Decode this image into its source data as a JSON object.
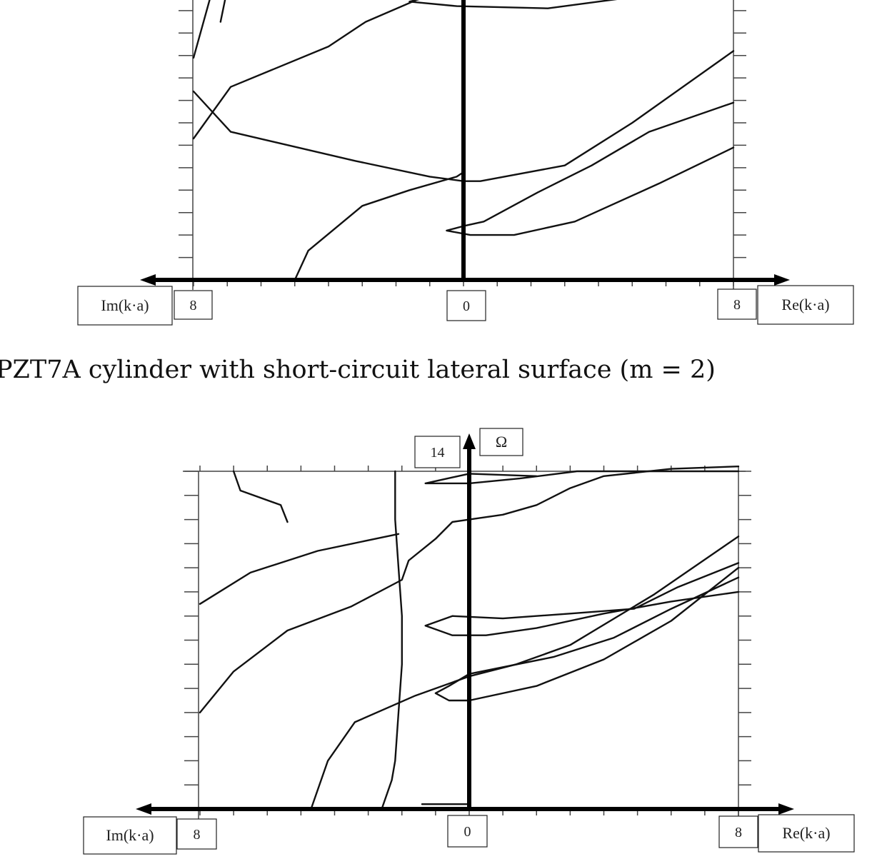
{
  "caption": "PZT7A cylinder  with short-circuit lateral surface (m = 2)",
  "chart_data": [
    {
      "type": "line",
      "title": "",
      "x_left_label": "Im(k·a)",
      "x_right_label": "Re(k·a)",
      "y_label": "",
      "x_left_max_label": "8",
      "x_zero_label": "0",
      "x_right_max_label": "8",
      "y_max_label": "",
      "xlim": [
        -8,
        8
      ],
      "ylim": [
        0,
        14
      ],
      "series": [
        {
          "x": [
            -7.2,
            -6.9,
            -5.4,
            -4.9
          ],
          "y": [
            11.5,
            13.7,
            13.4,
            14.0
          ]
        },
        {
          "x": [
            -8.0,
            -7.5,
            -7.5
          ],
          "y": [
            9.9,
            12.6,
            14.2
          ]
        },
        {
          "x": [
            -8.0,
            -6.9,
            -4.0,
            -2.9,
            -1.2,
            0.0,
            1.5,
            4.4,
            6.2,
            8.0
          ],
          "y": [
            6.3,
            8.6,
            10.4,
            11.5,
            12.6,
            12.8,
            13.1,
            13.6,
            14.0,
            14.5
          ]
        },
        {
          "x": [
            -8.0,
            -6.9,
            -3.2,
            -1.0,
            0.0,
            0.5,
            3.0,
            5.0,
            8.0
          ],
          "y": [
            8.4,
            6.6,
            5.3,
            4.6,
            4.4,
            4.4,
            5.1,
            7.0,
            10.2
          ]
        },
        {
          "x": [
            -5.0,
            -4.6,
            -3.0,
            -1.6,
            -0.2,
            0.0
          ],
          "y": [
            0.0,
            1.3,
            3.3,
            4.0,
            4.6,
            4.8
          ]
        },
        {
          "x": [
            1.5,
            0.0,
            -1.6,
            -0.2,
            2.5,
            5.0,
            8.0
          ],
          "y": [
            13.2,
            13.0,
            12.4,
            12.2,
            12.1,
            12.6,
            13.0
          ]
        },
        {
          "x": [
            8.0,
            5.5,
            3.8,
            2.2,
            0.6,
            0.0,
            -0.5,
            0.2,
            1.5,
            3.3,
            5.8,
            8.0
          ],
          "y": [
            7.9,
            6.6,
            5.1,
            3.9,
            2.6,
            2.4,
            2.2,
            2.0,
            2.0,
            2.6,
            4.3,
            5.9
          ]
        },
        {
          "x": [
            0.0,
            0.0
          ],
          "y": [
            0.3,
            5.9
          ]
        }
      ]
    },
    {
      "type": "line",
      "title": "",
      "x_left_label": "Im(k·a)",
      "x_right_label": "Re(k·a)",
      "y_label": "Ω",
      "x_left_max_label": "8",
      "x_zero_label": "0",
      "x_right_max_label": "8",
      "y_max_label": "14",
      "xlim": [
        -8,
        8
      ],
      "ylim": [
        0,
        14
      ],
      "series": [
        {
          "x": [
            -2.2,
            -2.2,
            -2.1,
            -2.0,
            -2.0,
            -2.1,
            -2.2,
            -2.3,
            -2.6
          ],
          "y": [
            14.0,
            12.0,
            10.0,
            8.0,
            6.0,
            4.0,
            2.0,
            1.2,
            0.0
          ]
        },
        {
          "x": [
            -7.0,
            -6.8,
            -5.6,
            -5.4
          ],
          "y": [
            14.0,
            13.2,
            12.6,
            11.9
          ]
        },
        {
          "x": [
            -8.0,
            -6.5,
            -4.5,
            -2.1
          ],
          "y": [
            8.5,
            9.8,
            10.7,
            11.4
          ]
        },
        {
          "x": [
            -8.0,
            -7.0,
            -5.4,
            -3.5,
            -2.0,
            -1.8,
            -1.0,
            -0.5,
            0.0,
            1.0,
            2.0,
            3.0,
            4.0,
            6.0,
            8.0
          ],
          "y": [
            4.0,
            5.7,
            7.4,
            8.4,
            9.5,
            10.3,
            11.2,
            11.9,
            12.0,
            12.2,
            12.6,
            13.3,
            13.8,
            14.1,
            14.2
          ]
        },
        {
          "x": [
            2.0,
            0.0,
            -1.3,
            -1.0,
            0.0,
            1.5,
            3.2,
            5.5,
            6.8,
            8.0
          ],
          "y": [
            13.8,
            13.9,
            13.5,
            13.5,
            13.5,
            13.7,
            14.0,
            14.0,
            14.0,
            14.0
          ]
        },
        {
          "x": [
            8.0,
            6.2,
            4.9,
            3.0,
            1.0,
            -0.5,
            -1.3,
            -0.5,
            0.5,
            2.0,
            4.0,
            6.0,
            8.0
          ],
          "y": [
            10.2,
            9.2,
            8.3,
            8.1,
            7.9,
            8.0,
            7.6,
            7.2,
            7.2,
            7.5,
            8.1,
            8.6,
            9.0
          ]
        },
        {
          "x": [
            -4.7,
            -4.2,
            -3.4,
            -1.6,
            0.0,
            1.4,
            3.0,
            5.5,
            8.0
          ],
          "y": [
            0.0,
            2.0,
            3.6,
            4.7,
            5.5,
            6.0,
            6.8,
            8.9,
            11.3
          ]
        },
        {
          "x": [
            8.0,
            6.0,
            4.3,
            2.5,
            0.0,
            -0.6,
            -1.0,
            -0.6,
            0.0,
            2.0,
            4.0,
            6.0,
            8.0
          ],
          "y": [
            9.6,
            8.3,
            7.1,
            6.3,
            5.6,
            5.1,
            4.8,
            4.5,
            4.5,
            5.1,
            6.2,
            7.8,
            10.0
          ]
        },
        {
          "x": [
            -1.4,
            0.0
          ],
          "y": [
            0.2,
            0.2
          ]
        }
      ]
    }
  ]
}
